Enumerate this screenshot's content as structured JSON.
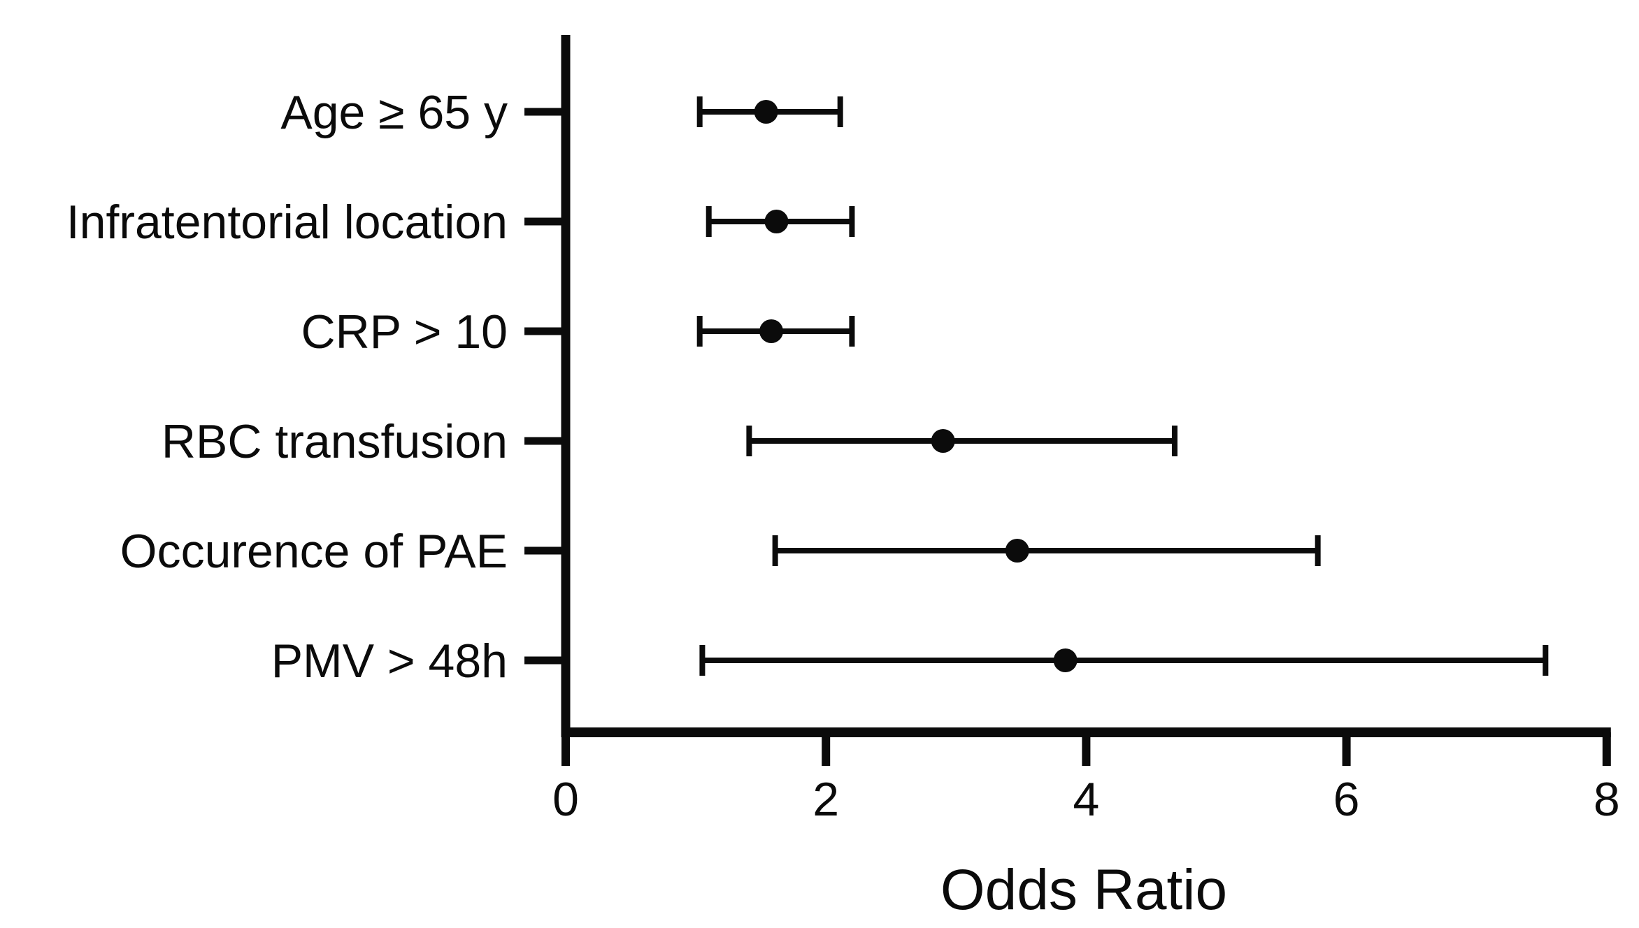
{
  "page": {
    "background_color": "#ffffff",
    "foreground_color": "#0b0b0b"
  },
  "chart_data": {
    "type": "scatter",
    "variant": "forest-plot-odds-ratio-with-ci",
    "title": "",
    "xlabel": "Odds Ratio",
    "ylabel": "",
    "xlim": [
      0,
      8
    ],
    "xticks": [
      "0",
      "2",
      "4",
      "6",
      "8"
    ],
    "xtick_values": [
      0,
      2,
      4,
      6,
      8
    ],
    "grid": false,
    "legend": "none",
    "categories": [
      "Age ≥ 65 y",
      "Infratentorial location",
      "CRP > 10",
      "RBC transfusion",
      "Occurence of PAE",
      "PMV > 48h"
    ],
    "series": [
      {
        "name": "Odds Ratio",
        "marker": "filled-circle",
        "points": [
          {
            "category": "Age ≥ 65 y",
            "or": 1.54,
            "ci_low": 1.03,
            "ci_high": 2.11
          },
          {
            "category": "Infratentorial location",
            "or": 1.62,
            "ci_low": 1.1,
            "ci_high": 2.2
          },
          {
            "category": "CRP > 10",
            "or": 1.58,
            "ci_low": 1.03,
            "ci_high": 2.2
          },
          {
            "category": "RBC transfusion",
            "or": 2.9,
            "ci_low": 1.41,
            "ci_high": 4.68
          },
          {
            "category": "Occurence of PAE",
            "or": 3.47,
            "ci_low": 1.61,
            "ci_high": 5.78
          },
          {
            "category": "PMV > 48h",
            "or": 3.84,
            "ci_low": 1.05,
            "ci_high": 7.53
          }
        ]
      }
    ],
    "colors": {
      "marker": "#0b0b0b",
      "error_bar": "#0b0b0b",
      "axis": "#0b0b0b",
      "text": "#0b0b0b",
      "background": "#ffffff"
    }
  }
}
